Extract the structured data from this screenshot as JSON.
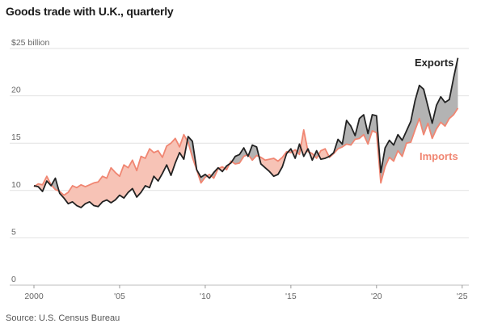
{
  "title": "Goods trade with U.K., quarterly",
  "source": "Source: U.S. Census Bureau",
  "colors": {
    "exports": "#222222",
    "imports": "#f08672",
    "exports_fill": "#b3b3b3",
    "imports_fill": "#f7c3b6",
    "grid": "#e2e2e2"
  },
  "chart_data": {
    "type": "line",
    "title": "Goods trade with U.K., quarterly",
    "y_unit_label": "$25 billion",
    "ylim": [
      0,
      25
    ],
    "y_ticks": [
      0,
      5,
      10,
      15,
      20,
      25
    ],
    "y_tick_labels": [
      "0",
      "5",
      "10",
      "15",
      "20",
      ""
    ],
    "x_range": [
      2000,
      2025.2
    ],
    "x_ticks": [
      2000,
      2005,
      2010,
      2015,
      2020,
      2025
    ],
    "x_tick_labels": [
      "2000",
      "'05",
      "'10",
      "'15",
      "'20",
      "'25"
    ],
    "grid": true,
    "x_start": 2000,
    "x_step": 0.25,
    "series": [
      {
        "name": "Exports",
        "values": [
          10.5,
          10.4,
          9.9,
          11.0,
          10.5,
          11.3,
          9.7,
          9.2,
          8.6,
          8.8,
          8.4,
          8.2,
          8.6,
          8.8,
          8.4,
          8.3,
          8.8,
          9.0,
          8.7,
          9.0,
          9.5,
          9.2,
          9.8,
          10.2,
          9.3,
          9.8,
          10.5,
          10.3,
          11.5,
          11.0,
          11.8,
          12.7,
          11.6,
          12.9,
          14.0,
          13.3,
          15.7,
          15.2,
          12.2,
          11.4,
          11.7,
          11.3,
          11.9,
          12.4,
          12.0,
          12.6,
          12.9,
          13.6,
          13.8,
          14.5,
          13.6,
          14.8,
          14.6,
          12.8,
          12.4,
          12.0,
          11.5,
          11.7,
          12.5,
          13.9,
          14.4,
          13.4,
          14.9,
          13.6,
          14.4,
          13.2,
          14.2,
          13.3,
          13.4,
          13.6,
          14.0,
          15.4,
          14.9,
          17.4,
          16.8,
          15.8,
          17.6,
          18.0,
          16.0,
          18.0,
          17.9,
          11.9,
          14.5,
          15.3,
          14.8,
          15.9,
          15.3,
          16.3,
          17.3,
          19.5,
          21.1,
          20.7,
          18.9,
          17.1,
          19.0,
          19.9,
          19.3,
          19.6,
          21.9,
          24.0
        ]
      },
      {
        "name": "Imports",
        "values": [
          10.4,
          10.7,
          10.6,
          11.5,
          10.6,
          10.1,
          9.9,
          9.5,
          9.8,
          10.5,
          10.3,
          10.6,
          10.4,
          10.6,
          10.8,
          10.9,
          11.5,
          11.3,
          12.4,
          11.9,
          11.5,
          12.7,
          12.4,
          13.2,
          12.1,
          13.6,
          13.4,
          14.4,
          14.0,
          14.2,
          13.5,
          14.7,
          15.0,
          15.5,
          14.6,
          15.9,
          15.1,
          13.5,
          12.2,
          10.8,
          11.4,
          11.7,
          11.3,
          12.3,
          12.5,
          12.2,
          13.1,
          12.8,
          12.9,
          13.6,
          13.8,
          13.2,
          13.7,
          13.5,
          13.2,
          13.3,
          13.4,
          13.1,
          13.5,
          14.1,
          14.0,
          14.3,
          13.8,
          16.4,
          14.1,
          13.9,
          13.4,
          14.2,
          14.4,
          13.5,
          13.9,
          14.4,
          14.6,
          14.9,
          14.8,
          15.4,
          15.5,
          15.9,
          14.9,
          16.3,
          16.1,
          10.8,
          12.5,
          13.5,
          13.1,
          14.2,
          13.6,
          15.0,
          15.1,
          16.4,
          17.6,
          15.9,
          17.1,
          15.5,
          16.5,
          17.2,
          16.8,
          17.6,
          18.0,
          18.7
        ]
      }
    ],
    "annotations": [
      {
        "text": "Exports",
        "series": "Exports"
      },
      {
        "text": "Imports",
        "series": "Imports"
      }
    ]
  }
}
